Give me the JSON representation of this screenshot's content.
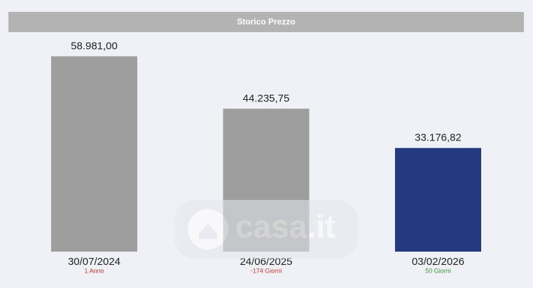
{
  "chart_data": {
    "type": "bar",
    "title": "Storico Prezzo",
    "categories": [
      "30/07/2024",
      "24/06/2025",
      "03/02/2026"
    ],
    "values": [
      58981,
      44235.75,
      33176.82
    ],
    "value_labels": [
      "58.981,00",
      "44.235,75",
      "33.176,82"
    ],
    "notes": [
      "1 Anno",
      "-174 Giorni",
      "50 Giorni"
    ],
    "note_colors": [
      "#d9352a",
      "#d9352a",
      "#3a9a3a"
    ],
    "colors": [
      "#9e9e9e",
      "#9e9e9e",
      "#233a80"
    ],
    "ylim": [
      4000,
      64000
    ]
  },
  "watermark": "casa.it"
}
